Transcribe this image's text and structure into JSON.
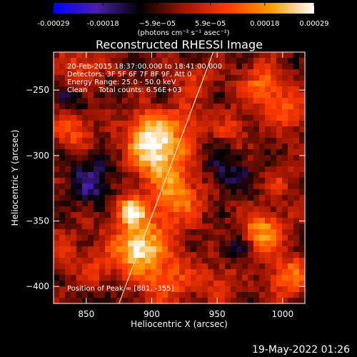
{
  "chart_data": {
    "type": "heatmap",
    "title": "Reconstructed RHESSI Image",
    "xlabel": "Heliocentric X (arcsec)",
    "ylabel": "Heliocentric Y (arcsec)",
    "xlim": [
      825,
      1017
    ],
    "ylim": [
      -413,
      -221
    ],
    "x_ticks": [
      850,
      900,
      950,
      1000
    ],
    "y_ticks": [
      -250,
      -300,
      -350,
      -400
    ],
    "colorbar": {
      "range": [
        -0.00029,
        0.00029
      ],
      "tick_values": [
        -0.00029,
        -0.00018,
        -5.9e-05,
        5.9e-05,
        0.00018,
        0.00029
      ],
      "tick_labels": [
        "-0.00029",
        "-0.00018",
        "−5.9e−05",
        "5.9e−05",
        "0.00018",
        "0.00029"
      ],
      "units_label": "(photons cm⁻² s⁻¹ asec⁻²)",
      "colors": [
        "#0000ff",
        "#4b1fa8",
        "#000000",
        "#a01500",
        "#ff3a00",
        "#ff9a00",
        "#ffffff"
      ]
    },
    "annotations": [
      "20-Feb-2015 18:37:00.000 to 18:41:00.000",
      "Detectors: 3F 5F 6F 7F 8F 9F, Att 0",
      "Energy Range: 25.0 - 50.0 keV",
      "Clean     Total counts: 6.56E+03"
    ],
    "peak_label": "Position of Peak = [881, -355]",
    "limb_line": [
      [
        875,
        -413
      ],
      [
        947,
        -221
      ]
    ],
    "sources": [
      {
        "x": 905,
        "y": -297,
        "peak": 1.0,
        "sigma": 15
      },
      {
        "x": 897,
        "y": -280,
        "peak": 0.55,
        "sigma": 11
      },
      {
        "x": 920,
        "y": -330,
        "peak": 0.6,
        "sigma": 14
      },
      {
        "x": 927,
        "y": -272,
        "peak": 0.45,
        "sigma": 9
      },
      {
        "x": 893,
        "y": -362,
        "peak": 0.55,
        "sigma": 18
      },
      {
        "x": 910,
        "y": -395,
        "peak": 0.5,
        "sigma": 14
      },
      {
        "x": 884,
        "y": -342,
        "peak": 0.85,
        "sigma": 7
      },
      {
        "x": 888,
        "y": -372,
        "peak": 0.6,
        "sigma": 10
      },
      {
        "x": 860,
        "y": -390,
        "peak": 0.35,
        "sigma": 10
      },
      {
        "x": 985,
        "y": -358,
        "peak": 0.75,
        "sigma": 11
      },
      {
        "x": 1005,
        "y": -393,
        "peak": 0.55,
        "sigma": 12
      },
      {
        "x": 985,
        "y": -248,
        "peak": 0.6,
        "sigma": 12
      },
      {
        "x": 1005,
        "y": -268,
        "peak": 0.45,
        "sigma": 10
      },
      {
        "x": 840,
        "y": -280,
        "peak": 0.5,
        "sigma": 10
      },
      {
        "x": 845,
        "y": -232,
        "peak": 0.45,
        "sigma": 10
      },
      {
        "x": 935,
        "y": -240,
        "peak": 0.35,
        "sigma": 10
      },
      {
        "x": 962,
        "y": -280,
        "peak": 0.35,
        "sigma": 9
      },
      {
        "x": 1000,
        "y": -320,
        "peak": 0.3,
        "sigma": 8
      },
      {
        "x": 950,
        "y": -395,
        "peak": 0.35,
        "sigma": 10
      },
      {
        "x": 835,
        "y": -372,
        "peak": 0.3,
        "sigma": 9
      },
      {
        "x": 855,
        "y": -320,
        "peak": -0.45,
        "sigma": 12
      },
      {
        "x": 840,
        "y": -258,
        "peak": -0.35,
        "sigma": 8
      },
      {
        "x": 958,
        "y": -312,
        "peak": -0.35,
        "sigma": 12
      },
      {
        "x": 965,
        "y": -372,
        "peak": -0.3,
        "sigma": 8
      },
      {
        "x": 938,
        "y": -225,
        "peak": -0.2,
        "sigma": 8
      },
      {
        "x": 865,
        "y": -408,
        "peak": -0.25,
        "sigma": 8
      }
    ]
  },
  "timestamp": "19-May-2022 01:26"
}
